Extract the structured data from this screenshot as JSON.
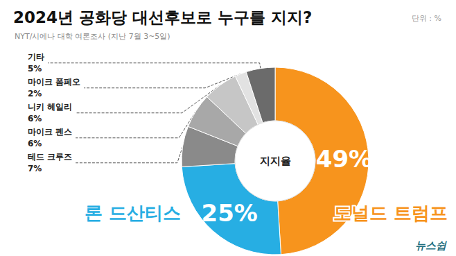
{
  "chart_data": {
    "type": "pie",
    "title": "2024년 공화당 대선후보로 누구를 지지?",
    "subtitle": "NYT/시에나 대학 여론조사 (지난 7월 3~5일)",
    "unit_label": "단위 : %",
    "brand": "뉴스쉽",
    "center_label": "지지율",
    "categories": [
      "도널드 트럼프",
      "론 드산티스",
      "테드 크루즈",
      "마이크 펜스",
      "니키 헤일리",
      "마이크 폼페오",
      "기타"
    ],
    "values": [
      49,
      25,
      7,
      6,
      6,
      2,
      5
    ],
    "value_labels": [
      "49%",
      "25%",
      "7%",
      "6%",
      "6%",
      "2%",
      "5%"
    ],
    "colors": [
      "#f7941d",
      "#27aee3",
      "#8a8a8a",
      "#a8a8a8",
      "#c6c6c6",
      "#e2e2e2",
      "#6b6b6b"
    ],
    "data_labels": true
  }
}
